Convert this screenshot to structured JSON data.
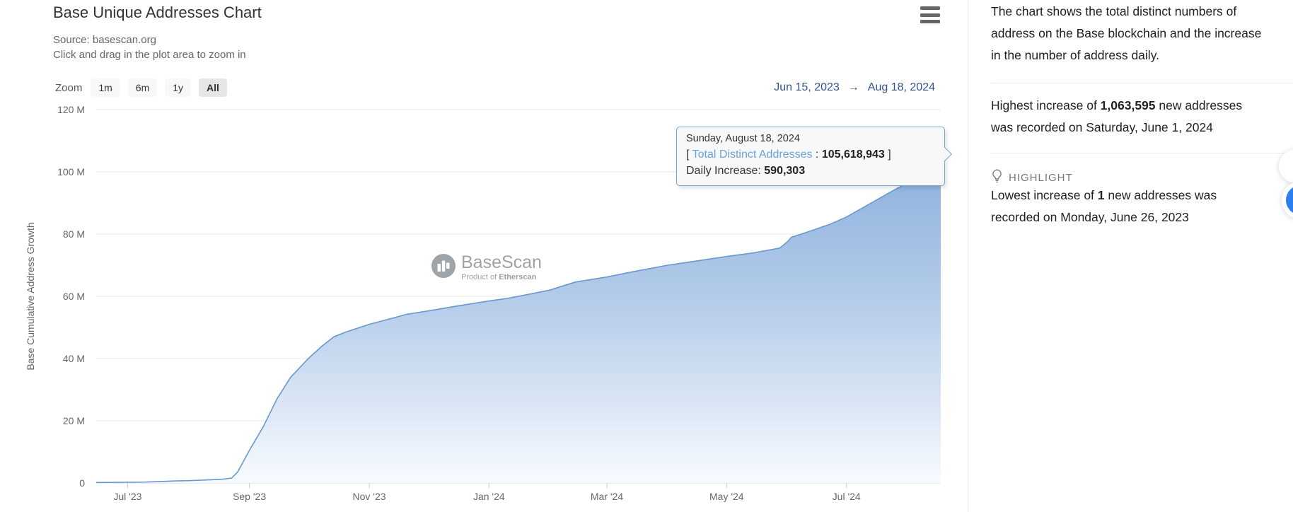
{
  "header": {
    "title": "Base Unique Addresses Chart",
    "source": "Source: basescan.org",
    "hint": "Click and drag in the plot area to zoom in"
  },
  "zoom": {
    "label": "Zoom",
    "buttons": [
      {
        "label": "1m",
        "active": false
      },
      {
        "label": "6m",
        "active": false
      },
      {
        "label": "1y",
        "active": false
      },
      {
        "label": "All",
        "active": true
      }
    ]
  },
  "date_range": {
    "from": "Jun 15, 2023",
    "arrow": "→",
    "to": "Aug 18, 2024"
  },
  "menu_icon": "context-menu",
  "watermark": {
    "name": "BaseScan",
    "tagline": [
      {
        "t": "Product of "
      },
      {
        "t": "Etherscan",
        "b": true
      }
    ]
  },
  "tooltip": {
    "title": "Sunday, August 18, 2024",
    "line2": [
      {
        "t": "[ "
      },
      {
        "t": "Total Distinct Addresses",
        "cls": "series"
      },
      {
        "t": " : "
      },
      {
        "t": "105,618,943",
        "b": true
      },
      {
        "t": " ]"
      }
    ],
    "line3": [
      {
        "t": "Daily Increase: "
      },
      {
        "t": "590,303",
        "b": true
      }
    ]
  },
  "chart_data": {
    "type": "area",
    "title": "Base Unique Addresses Chart",
    "xlabel": "",
    "ylabel": "Base Cumulative Address Growth",
    "x_range": [
      "2023-06-15",
      "2024-08-18"
    ],
    "ylim": [
      0,
      120
    ],
    "unit": "millions of addresses",
    "grid": true,
    "colors": {
      "line": "#6898cd",
      "marker": "#4c8dd3",
      "grad_top": "#7ca6d8",
      "grad_mid": "#b9cfeb",
      "grad_bottom": "#f8fbfe"
    },
    "y_ticks": [
      {
        "value": 0,
        "label": "0"
      },
      {
        "value": 20,
        "label": "20 M"
      },
      {
        "value": 40,
        "label": "40 M"
      },
      {
        "value": 60,
        "label": "60 M"
      },
      {
        "value": 80,
        "label": "80 M"
      },
      {
        "value": 100,
        "label": "100 M"
      },
      {
        "value": 120,
        "label": "120 M"
      }
    ],
    "x_ticks": [
      {
        "date": "2023-07-01",
        "label": "Jul '23"
      },
      {
        "date": "2023-09-01",
        "label": "Sep '23"
      },
      {
        "date": "2023-11-01",
        "label": "Nov '23"
      },
      {
        "date": "2024-01-01",
        "label": "Jan '24"
      },
      {
        "date": "2024-03-01",
        "label": "Mar '24"
      },
      {
        "date": "2024-05-01",
        "label": "May '24"
      },
      {
        "date": "2024-07-01",
        "label": "Jul '24"
      }
    ],
    "series": [
      {
        "name": "Total Distinct Addresses",
        "points": [
          [
            "2023-06-15",
            0.15
          ],
          [
            "2023-06-26",
            0.2
          ],
          [
            "2023-07-10",
            0.3
          ],
          [
            "2023-07-21",
            0.55
          ],
          [
            "2023-07-25",
            0.65
          ],
          [
            "2023-08-01",
            0.75
          ],
          [
            "2023-08-09",
            0.95
          ],
          [
            "2023-08-18",
            1.2
          ],
          [
            "2023-08-23",
            1.6
          ],
          [
            "2023-08-26",
            3.5
          ],
          [
            "2023-09-01",
            10.5
          ],
          [
            "2023-09-08",
            18
          ],
          [
            "2023-09-15",
            27
          ],
          [
            "2023-09-22",
            34
          ],
          [
            "2023-10-01",
            40
          ],
          [
            "2023-10-08",
            44
          ],
          [
            "2023-10-14",
            47
          ],
          [
            "2023-10-20",
            48.5
          ],
          [
            "2023-11-01",
            51
          ],
          [
            "2023-11-10",
            52.5
          ],
          [
            "2023-11-20",
            54.2
          ],
          [
            "2023-12-01",
            55.3
          ],
          [
            "2023-12-15",
            56.8
          ],
          [
            "2024-01-01",
            58.5
          ],
          [
            "2024-01-10",
            59.3
          ],
          [
            "2024-01-20",
            60.5
          ],
          [
            "2024-02-01",
            62
          ],
          [
            "2024-02-10",
            63.8
          ],
          [
            "2024-02-14",
            64.6
          ],
          [
            "2024-03-01",
            66.2
          ],
          [
            "2024-03-15",
            68
          ],
          [
            "2024-04-01",
            70
          ],
          [
            "2024-04-15",
            71.3
          ],
          [
            "2024-05-01",
            72.8
          ],
          [
            "2024-05-15",
            74
          ],
          [
            "2024-05-28",
            75.5
          ],
          [
            "2024-05-30",
            76.5
          ],
          [
            "2024-06-01",
            77.6
          ],
          [
            "2024-06-03",
            79
          ],
          [
            "2024-06-08",
            80
          ],
          [
            "2024-06-15",
            81.5
          ],
          [
            "2024-06-22",
            83
          ],
          [
            "2024-07-01",
            85.5
          ],
          [
            "2024-07-08",
            88
          ],
          [
            "2024-07-15",
            90.5
          ],
          [
            "2024-07-22",
            93
          ],
          [
            "2024-08-01",
            96.5
          ],
          [
            "2024-08-06",
            98.5
          ],
          [
            "2024-08-10",
            100.5
          ],
          [
            "2024-08-14",
            102.8
          ],
          [
            "2024-08-18",
            105.619
          ]
        ]
      }
    ],
    "selected_point": {
      "date": "2024-08-18",
      "total_distinct_addresses": 105618943,
      "daily_increase": 590303
    },
    "legend": "off"
  },
  "sidebar": {
    "p1": [
      [
        {
          "t": "The chart shows the total distinct numbers of"
        }
      ],
      [
        {
          "t": "address on the Base blockchain and the increase"
        }
      ],
      [
        {
          "t": "in the number of address daily."
        }
      ]
    ],
    "p2": [
      [
        {
          "t": "Highest increase of "
        },
        {
          "t": "1,063,595",
          "b": true
        },
        {
          "t": " new addresses"
        }
      ],
      [
        {
          "t": "was recorded on Saturday, June 1, 2024"
        }
      ]
    ],
    "highlight_label": "HIGHLIGHT",
    "p3": [
      [
        {
          "t": "Lowest increase of "
        },
        {
          "t": "1",
          "b": true
        },
        {
          "t": " new addresses was"
        }
      ],
      [
        {
          "t": "recorded on Monday, June 26, 2023"
        }
      ]
    ]
  }
}
